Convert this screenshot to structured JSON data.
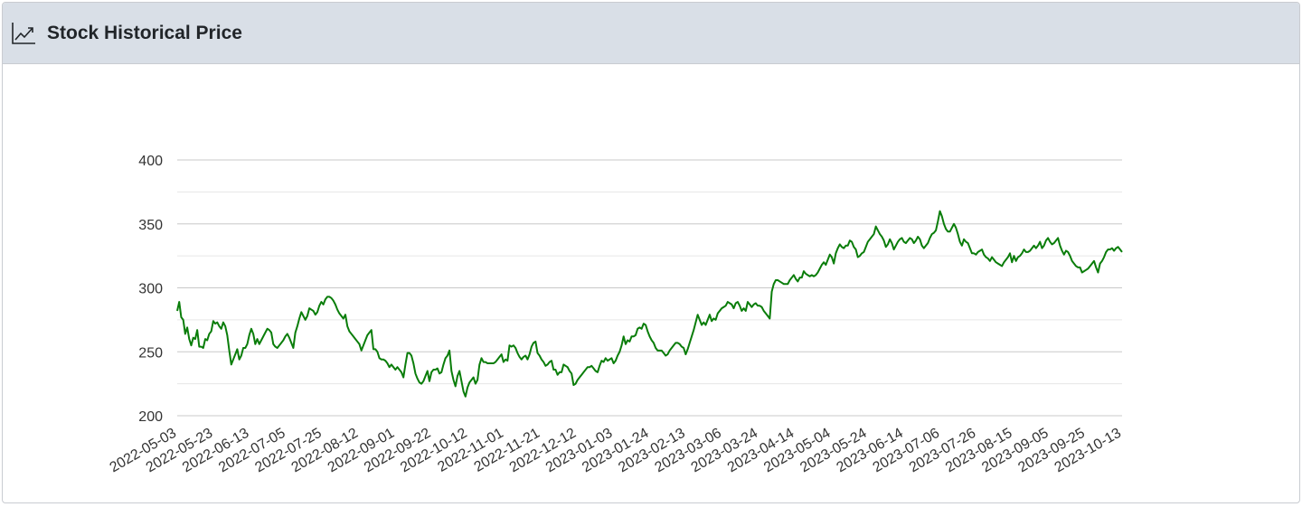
{
  "header": {
    "title": "Stock Historical Price",
    "icon": "chart-line-icon"
  },
  "colors": {
    "line": "#0a7d0a",
    "grid": "#d0d0d0",
    "header_bg": "#d9dfe7",
    "text": "#333333"
  },
  "chart_data": {
    "type": "line",
    "title": "",
    "xlabel": "",
    "ylabel": "",
    "ylim": [
      200,
      400
    ],
    "yticks": [
      200,
      250,
      300,
      350,
      400
    ],
    "grid": true,
    "legend": "none",
    "x_tick_labels": [
      "2022-05-03",
      "2022-05-23",
      "2022-06-13",
      "2022-07-05",
      "2022-07-25",
      "2022-08-12",
      "2022-09-01",
      "2022-09-22",
      "2022-10-12",
      "2022-11-01",
      "2022-11-21",
      "2022-12-12",
      "2023-01-03",
      "2023-01-24",
      "2023-02-13",
      "2023-03-06",
      "2023-03-24",
      "2023-04-14",
      "2023-05-04",
      "2023-05-24",
      "2023-06-14",
      "2023-07-06",
      "2023-07-26",
      "2023-08-15",
      "2023-09-05",
      "2023-09-25",
      "2023-10-13"
    ],
    "series": [
      {
        "values": [
          282,
          289,
          277,
          275,
          264,
          269,
          260,
          255,
          261,
          260,
          267,
          254,
          254,
          253,
          260,
          259,
          264,
          266,
          274,
          272,
          273,
          270,
          268,
          273,
          270,
          263,
          251,
          240,
          244,
          248,
          252,
          244,
          247,
          253,
          253,
          256,
          263,
          268,
          264,
          256,
          260,
          256,
          259,
          262,
          265,
          268,
          267,
          265,
          256,
          254,
          253,
          255,
          257,
          259,
          262,
          264,
          261,
          257,
          253,
          265,
          270,
          276,
          281,
          278,
          275,
          278,
          284,
          283,
          282,
          279,
          281,
          286,
          289,
          287,
          291,
          293,
          293,
          292,
          290,
          287,
          283,
          280,
          278,
          276,
          279,
          270,
          266,
          264,
          262,
          260,
          258,
          256,
          251,
          255,
          259,
          263,
          265,
          267,
          252,
          252,
          250,
          245,
          244,
          244,
          243,
          241,
          238,
          240,
          238,
          236,
          238,
          236,
          234,
          230,
          240,
          249,
          249,
          247,
          241,
          233,
          229,
          226,
          225,
          227,
          231,
          235,
          227,
          234,
          236,
          236,
          237,
          233,
          234,
          240,
          245,
          247,
          251,
          235,
          228,
          223,
          231,
          235,
          227,
          219,
          215,
          222,
          226,
          228,
          230,
          225,
          228,
          240,
          245,
          242,
          242,
          241,
          241,
          241,
          241,
          242,
          244,
          246,
          248,
          242,
          244,
          243,
          255,
          254,
          255,
          253,
          249,
          246,
          244,
          246,
          247,
          244,
          248,
          254,
          257,
          258,
          249,
          247,
          244,
          242,
          239,
          240,
          242,
          243,
          236,
          236,
          232,
          234,
          234,
          240,
          239,
          238,
          235,
          233,
          224,
          225,
          228,
          230,
          232,
          234,
          236,
          238,
          238,
          239,
          237,
          235,
          234,
          239,
          243,
          242,
          245,
          243,
          244,
          245,
          241,
          243,
          247,
          250,
          255,
          262,
          256,
          259,
          258,
          262,
          262,
          263,
          268,
          269,
          268,
          272,
          271,
          266,
          262,
          259,
          257,
          253,
          251,
          251,
          251,
          249,
          247,
          248,
          251,
          253,
          255,
          257,
          257,
          256,
          254,
          253,
          248,
          252,
          257,
          262,
          267,
          273,
          279,
          275,
          271,
          273,
          271,
          275,
          279,
          274,
          276,
          275,
          280,
          282,
          284,
          285,
          286,
          289,
          288,
          287,
          284,
          288,
          289,
          286,
          282,
          284,
          282,
          289,
          287,
          285,
          287,
          288,
          286,
          286,
          285,
          282,
          280,
          278,
          276,
          297,
          303,
          306,
          306,
          305,
          304,
          303,
          303,
          303,
          306,
          308,
          310,
          307,
          305,
          308,
          308,
          313,
          311,
          310,
          309,
          310,
          309,
          310,
          312,
          315,
          318,
          320,
          318,
          322,
          326,
          324,
          319,
          327,
          331,
          334,
          332,
          331,
          333,
          333,
          337,
          336,
          332,
          330,
          324,
          325,
          327,
          328,
          332,
          336,
          338,
          340,
          342,
          348,
          345,
          342,
          340,
          337,
          332,
          334,
          338,
          335,
          330,
          333,
          336,
          338,
          339,
          336,
          335,
          337,
          339,
          338,
          335,
          337,
          340,
          338,
          333,
          331,
          333,
          335,
          339,
          342,
          343,
          345,
          352,
          360,
          356,
          350,
          346,
          344,
          344,
          347,
          350,
          347,
          342,
          336,
          333,
          338,
          336,
          335,
          331,
          327,
          327,
          326,
          328,
          329,
          330,
          326,
          324,
          323,
          321,
          324,
          322,
          320,
          319,
          318,
          317,
          320,
          322,
          324,
          327,
          320,
          325,
          321,
          324,
          325,
          327,
          330,
          328,
          328,
          329,
          331,
          333,
          331,
          333,
          336,
          331,
          333,
          337,
          339,
          336,
          334,
          335,
          337,
          339,
          333,
          329,
          326,
          329,
          328,
          325,
          321,
          319,
          317,
          316,
          316,
          312,
          313,
          314,
          315,
          317,
          319,
          321,
          316,
          312,
          319,
          321,
          324,
          328,
          330,
          330,
          331,
          329,
          331,
          332,
          330,
          328
        ]
      }
    ]
  }
}
